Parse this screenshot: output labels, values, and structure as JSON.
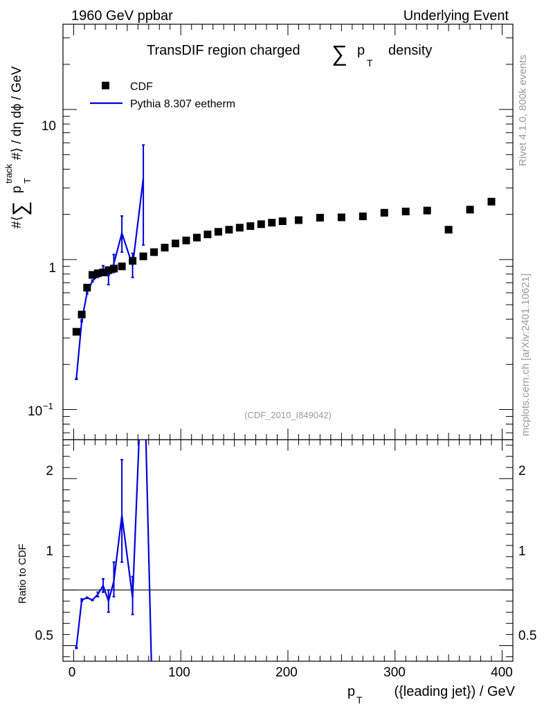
{
  "header": {
    "left": "1960 GeV ppbar",
    "right": "Underlying Event"
  },
  "side_labels": {
    "rivet": "Rivet 4.1.0,  800k events",
    "mcplots": "mcplots.cern.ch [arXiv:2401.10621]"
  },
  "chart_data": [
    {
      "type": "scatter",
      "panel": "main",
      "title": "TransDIF region charged∑ p_T density",
      "title_parts": {
        "main": "TransDIF region charged",
        "sum": "∑",
        "p": "p",
        "sub": "T",
        "rest": "density"
      },
      "ylabel_parts": {
        "a": "#⟨",
        "sum": "∑",
        "p": "p",
        "sup": "track",
        "sub": "T",
        "b": "#⟩ / dη dϕ / GeV"
      },
      "yscale": "log",
      "ylim": [
        0.063,
        37
      ],
      "xlim": [
        -10,
        410
      ],
      "yticks": [
        {
          "value": 0.1,
          "label": "10",
          "exp": "−1"
        },
        {
          "value": 1,
          "label": "1",
          "exp": ""
        },
        {
          "value": 10,
          "label": "10",
          "exp": ""
        }
      ],
      "watermark": "(CDF_2010_I849042)",
      "legend": {
        "position": "top-left",
        "entries": [
          "CDF",
          "Pythia 8.307 eetherm"
        ]
      },
      "series": [
        {
          "name": "CDF",
          "style": "markers",
          "color": "#000000",
          "x": [
            2.5,
            7.5,
            12.5,
            17.5,
            22.5,
            27.5,
            32.5,
            37.5,
            45,
            55,
            65,
            75,
            85,
            95,
            105,
            115,
            125,
            135,
            145,
            155,
            165,
            175,
            185,
            195,
            210,
            230,
            250,
            270,
            290,
            310,
            330,
            350,
            370,
            390
          ],
          "y": [
            0.33,
            0.43,
            0.65,
            0.79,
            0.81,
            0.82,
            0.85,
            0.87,
            0.9,
            0.98,
            1.05,
            1.12,
            1.2,
            1.28,
            1.34,
            1.4,
            1.47,
            1.53,
            1.58,
            1.63,
            1.67,
            1.72,
            1.76,
            1.8,
            1.83,
            1.9,
            1.91,
            1.94,
            2.05,
            2.09,
            2.12,
            1.58,
            2.15,
            2.43
          ]
        },
        {
          "name": "Pythia 8.307 eetherm",
          "style": "line",
          "color": "#0000dd",
          "x": [
            2.5,
            7.5,
            12.5,
            17.5,
            22.5,
            27.5,
            32.5,
            37.5,
            45,
            55,
            65
          ],
          "y": [
            0.16,
            0.39,
            0.6,
            0.72,
            0.78,
            0.85,
            0.77,
            0.94,
            1.5,
            0.91,
            3.5
          ],
          "err_lo": [
            0.159,
            0.385,
            0.59,
            0.71,
            0.76,
            0.79,
            0.68,
            0.82,
            1.12,
            0.76,
            1.25
          ],
          "err_hi": [
            0.161,
            0.395,
            0.61,
            0.73,
            0.8,
            0.91,
            0.88,
            1.08,
            1.95,
            1.1,
            5.8
          ]
        }
      ]
    },
    {
      "type": "line",
      "panel": "ratio",
      "ylabel": "Ratio to CDF",
      "xlabel_parts": {
        "p": "p",
        "sub": "T",
        "rest": "({leading jet}) / GeV"
      },
      "xlim": [
        -10,
        410
      ],
      "ylim": [
        0.36,
        2.35
      ],
      "xticks": [
        0,
        100,
        200,
        300,
        400
      ],
      "xtick_labels": [
        "0",
        "100",
        "200",
        "300",
        "400"
      ],
      "yticks": [
        0.5,
        1,
        2
      ],
      "ytick_labels": [
        "0.5",
        "1",
        "2"
      ],
      "reference_line": 1,
      "series": [
        {
          "name": "Pythia 8.307 eetherm / CDF",
          "color": "#0000dd",
          "x": [
            2.5,
            7.5,
            12.5,
            17.5,
            22.5,
            27.5,
            32.5,
            37.5,
            45,
            55,
            65,
            72.5
          ],
          "y": [
            0.48,
            0.91,
            0.93,
            0.91,
            0.96,
            1.04,
            0.9,
            1.08,
            1.67,
            0.93,
            3.3,
            0.36
          ],
          "err_lo": [
            0.475,
            0.9,
            0.925,
            0.905,
            0.94,
            0.98,
            0.8,
            0.94,
            1.25,
            0.78,
            3.3,
            0.36
          ],
          "err_hi": [
            0.485,
            0.92,
            0.935,
            0.915,
            0.98,
            1.1,
            1.0,
            1.25,
            2.17,
            1.12,
            3.3,
            0.36
          ]
        }
      ]
    }
  ]
}
